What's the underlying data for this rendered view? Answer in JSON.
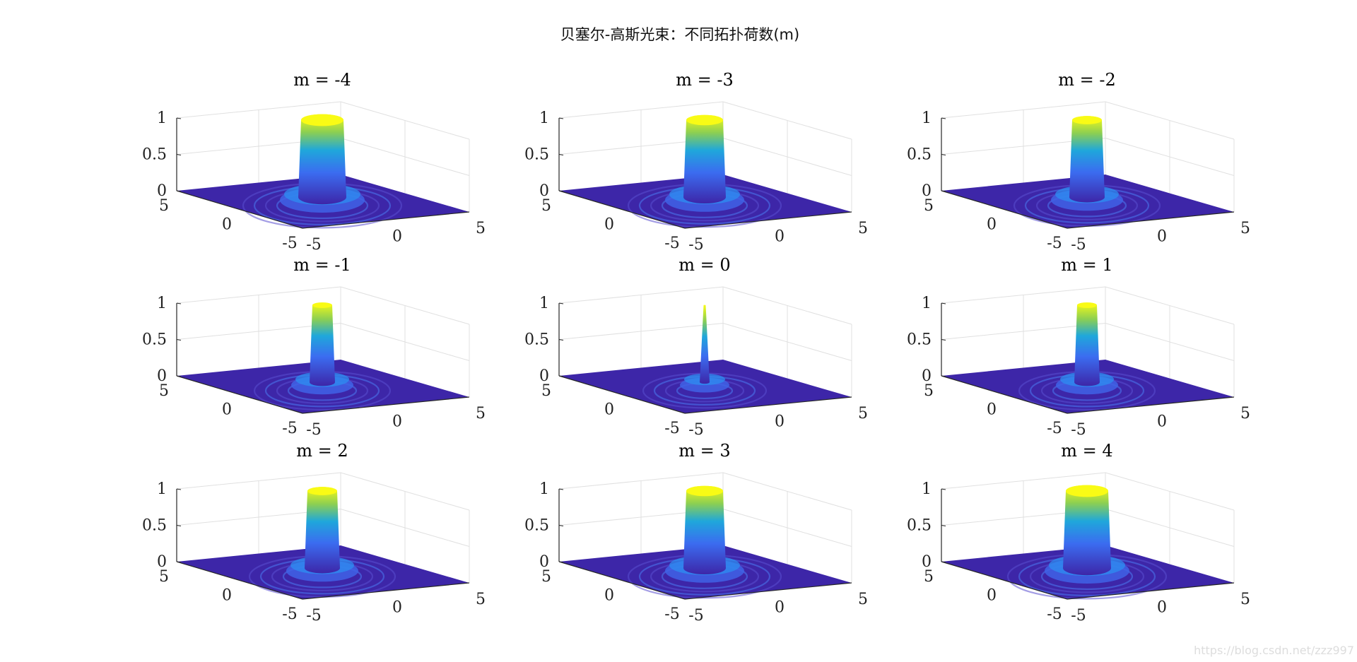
{
  "page_title": "贝塞尔-高斯光束：不同拓扑荷数(m)",
  "watermark": "https://blog.csdn.net/zzz997",
  "colors": {
    "background": "#ffffff",
    "axis_line": "#262626",
    "grid_line": "#e0e0e0",
    "colormap_low": "#3d26a8",
    "colormap_mid": "#1fa7db",
    "colormap_high": "#f9fb15"
  },
  "chart_data": [
    {
      "type": "surface",
      "title": "m = -4",
      "m": -4,
      "z_ticks": [
        "0",
        "0.5",
        "1"
      ],
      "x_ticks": [
        "-5",
        "0",
        "5"
      ],
      "y_ticks": [
        "-5",
        "0",
        "5"
      ],
      "zlim": [
        0,
        1
      ],
      "xlim": [
        -5,
        5
      ],
      "ylim": [
        -5,
        5
      ],
      "grid": true,
      "colormap": "parula"
    },
    {
      "type": "surface",
      "title": "m = -3",
      "m": -3,
      "z_ticks": [
        "0",
        "0.5",
        "1"
      ],
      "x_ticks": [
        "-5",
        "0",
        "5"
      ],
      "y_ticks": [
        "-5",
        "0",
        "5"
      ],
      "zlim": [
        0,
        1
      ],
      "xlim": [
        -5,
        5
      ],
      "ylim": [
        -5,
        5
      ],
      "grid": true,
      "colormap": "parula"
    },
    {
      "type": "surface",
      "title": "m = -2",
      "m": -2,
      "z_ticks": [
        "0",
        "0.5",
        "1"
      ],
      "x_ticks": [
        "-5",
        "0",
        "5"
      ],
      "y_ticks": [
        "-5",
        "0",
        "5"
      ],
      "zlim": [
        0,
        1
      ],
      "xlim": [
        -5,
        5
      ],
      "ylim": [
        -5,
        5
      ],
      "grid": true,
      "colormap": "parula"
    },
    {
      "type": "surface",
      "title": "m = -1",
      "m": -1,
      "z_ticks": [
        "0",
        "0.5",
        "1"
      ],
      "x_ticks": [
        "-5",
        "0",
        "5"
      ],
      "y_ticks": [
        "-5",
        "0",
        "5"
      ],
      "zlim": [
        0,
        1
      ],
      "xlim": [
        -5,
        5
      ],
      "ylim": [
        -5,
        5
      ],
      "grid": true,
      "colormap": "parula"
    },
    {
      "type": "surface",
      "title": "m = 0",
      "m": 0,
      "z_ticks": [
        "0",
        "0.5",
        "1"
      ],
      "x_ticks": [
        "-5",
        "0",
        "5"
      ],
      "y_ticks": [
        "-5",
        "0",
        "5"
      ],
      "zlim": [
        0,
        1
      ],
      "xlim": [
        -5,
        5
      ],
      "ylim": [
        -5,
        5
      ],
      "grid": true,
      "colormap": "parula"
    },
    {
      "type": "surface",
      "title": "m = 1",
      "m": 1,
      "z_ticks": [
        "0",
        "0.5",
        "1"
      ],
      "x_ticks": [
        "-5",
        "0",
        "5"
      ],
      "y_ticks": [
        "-5",
        "0",
        "5"
      ],
      "zlim": [
        0,
        1
      ],
      "xlim": [
        -5,
        5
      ],
      "ylim": [
        -5,
        5
      ],
      "grid": true,
      "colormap": "parula"
    },
    {
      "type": "surface",
      "title": "m = 2",
      "m": 2,
      "z_ticks": [
        "0",
        "0.5",
        "1"
      ],
      "x_ticks": [
        "-5",
        "0",
        "5"
      ],
      "y_ticks": [
        "-5",
        "0",
        "5"
      ],
      "zlim": [
        0,
        1
      ],
      "xlim": [
        -5,
        5
      ],
      "ylim": [
        -5,
        5
      ],
      "grid": true,
      "colormap": "parula"
    },
    {
      "type": "surface",
      "title": "m = 3",
      "m": 3,
      "z_ticks": [
        "0",
        "0.5",
        "1"
      ],
      "x_ticks": [
        "-5",
        "0",
        "5"
      ],
      "y_ticks": [
        "-5",
        "0",
        "5"
      ],
      "zlim": [
        0,
        1
      ],
      "xlim": [
        -5,
        5
      ],
      "ylim": [
        -5,
        5
      ],
      "grid": true,
      "colormap": "parula"
    },
    {
      "type": "surface",
      "title": "m = 4",
      "m": 4,
      "z_ticks": [
        "0",
        "0.5",
        "1"
      ],
      "x_ticks": [
        "-5",
        "0",
        "5"
      ],
      "y_ticks": [
        "-5",
        "0",
        "5"
      ],
      "zlim": [
        0,
        1
      ],
      "xlim": [
        -5,
        5
      ],
      "ylim": [
        -5,
        5
      ],
      "grid": true,
      "colormap": "parula"
    }
  ]
}
